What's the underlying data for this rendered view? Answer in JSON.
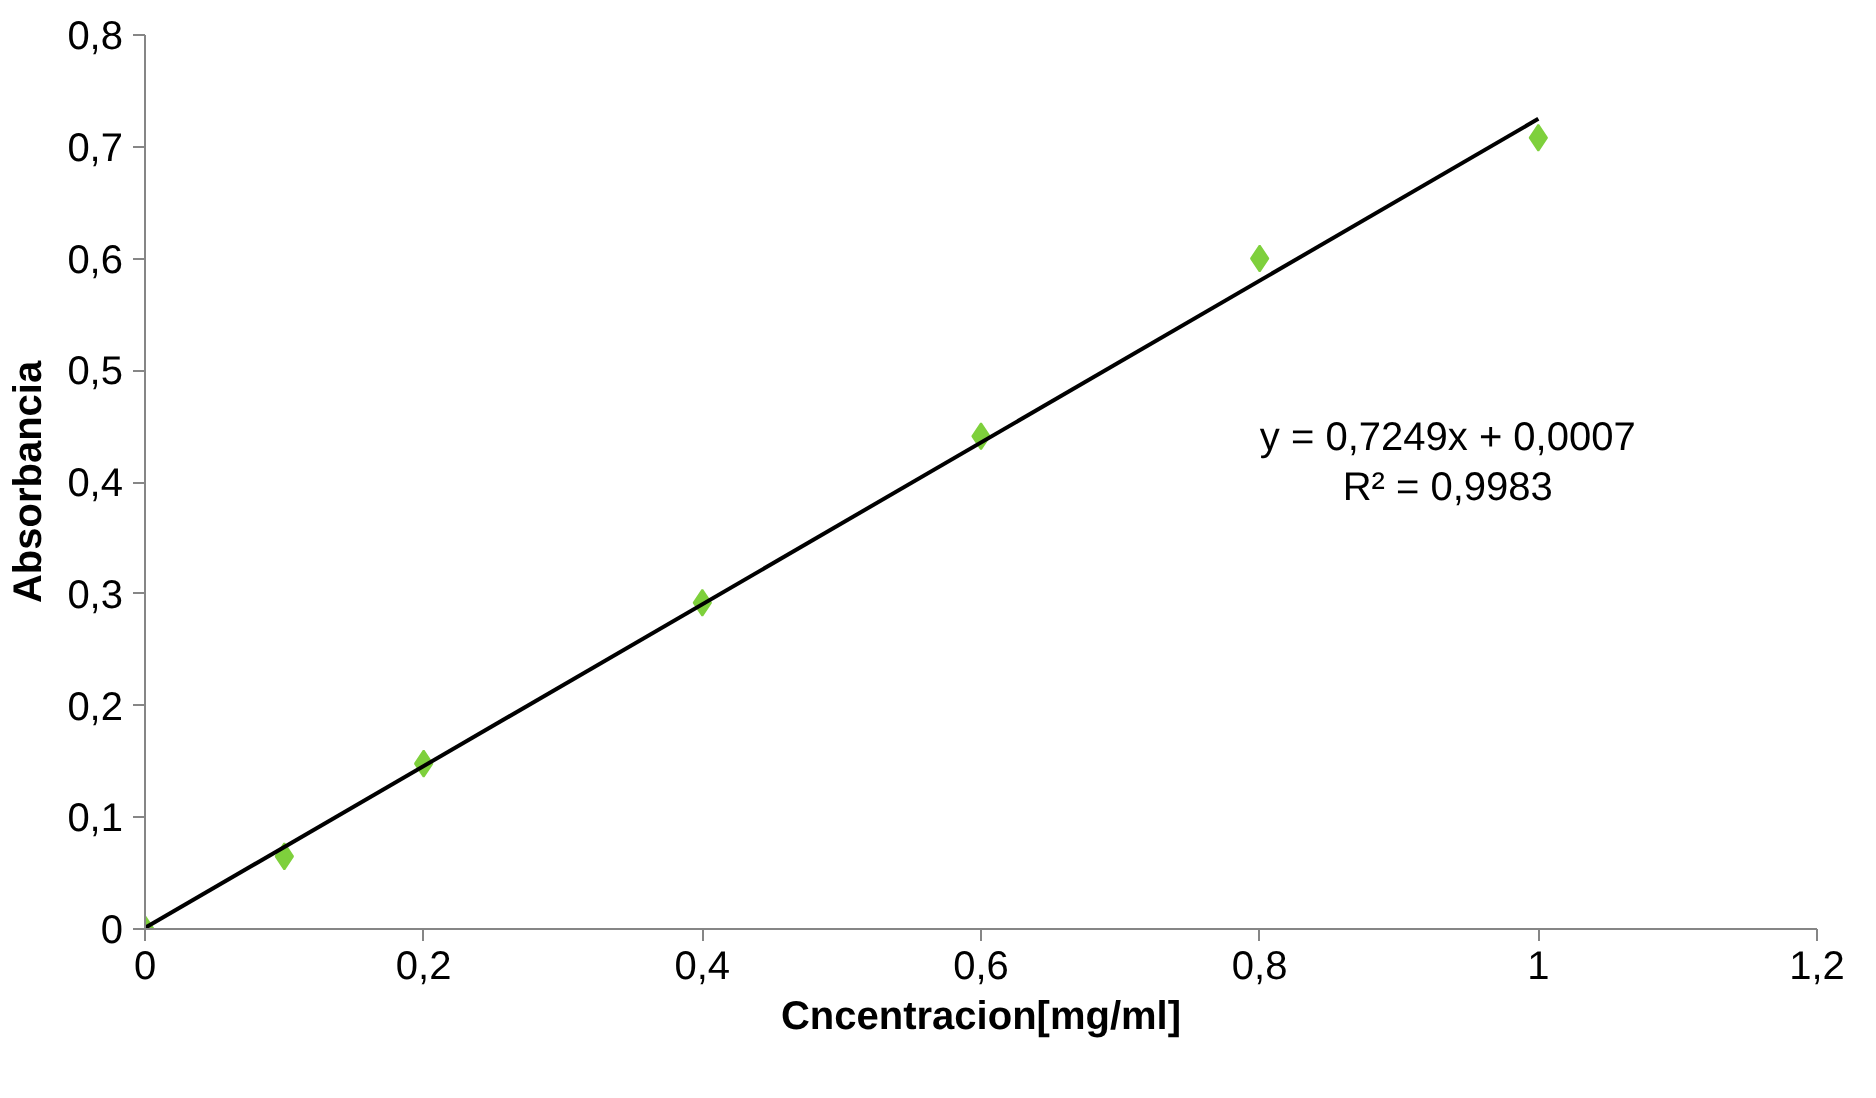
{
  "chart_data": {
    "type": "scatter",
    "xlabel": "Cncentracion[mg/ml]",
    "ylabel": "Absorbancia",
    "x": [
      0,
      0.1,
      0.2,
      0.4,
      0.6,
      0.8,
      1
    ],
    "series": [
      {
        "color": "#7ed03c",
        "values": [
          0,
          0.065,
          0.148,
          0.292,
          0.441,
          0.6,
          0.708
        ],
        "marker": "diamond"
      },
      {
        "type": "line",
        "color": "#000000",
        "x": [
          0,
          1
        ],
        "values": [
          0.001,
          0.725
        ],
        "marker": "none",
        "line_style": "solid"
      }
    ],
    "xlim": [
      0,
      1.2
    ],
    "ylim": [
      0,
      0.8
    ],
    "xticks": [
      0,
      {
        "value": 0.2,
        "label": "0,2"
      },
      {
        "value": 0.4,
        "label": "0,4"
      },
      {
        "value": 0.6,
        "label": "0,6"
      },
      {
        "value": 0.8,
        "label": "0,8"
      },
      1,
      {
        "value": 1.2,
        "label": "1,2"
      }
    ],
    "yticks": [
      0,
      {
        "value": 0.1,
        "label": "0,1"
      },
      {
        "value": 0.2,
        "label": "0,2"
      },
      {
        "value": 0.3,
        "label": "0,3"
      },
      {
        "value": 0.4,
        "label": "0,4"
      },
      {
        "value": 0.5,
        "label": "0,5"
      },
      {
        "value": 0.6,
        "label": "0,6"
      },
      {
        "value": 0.7,
        "label": "0,7"
      },
      {
        "value": 0.8,
        "label": "0,8"
      }
    ],
    "annotations": [
      "y = 0,7249x + 0,0007",
      "R² = 0,9983"
    ],
    "grid": false
  }
}
